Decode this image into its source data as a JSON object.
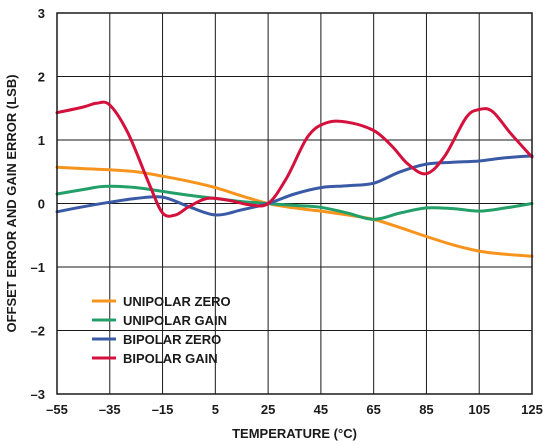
{
  "chart_data": {
    "type": "line",
    "title": "",
    "xlabel": "TEMPERATURE (°C)",
    "ylabel": "OFFSET ERROR AND GAIN ERROR (LSB)",
    "xlim": [
      -55,
      125
    ],
    "ylim": [
      -3,
      3
    ],
    "x_ticks": [
      -55,
      -35,
      -15,
      5,
      25,
      45,
      65,
      85,
      105,
      125
    ],
    "x_tick_labels": [
      "–55",
      "–35",
      "–15",
      "5",
      "25",
      "45",
      "65",
      "85",
      "105",
      "125"
    ],
    "y_ticks": [
      -3,
      -2,
      -1,
      0,
      1,
      2,
      3
    ],
    "y_tick_labels": [
      "–3",
      "–2",
      "–1",
      "0",
      "1",
      "2",
      "3"
    ],
    "grid": true,
    "legend_position": "bottom-left",
    "series": [
      {
        "name": "UNIPOLAR ZERO",
        "color": "#F7941D",
        "points": [
          [
            -55,
            0.57
          ],
          [
            -45,
            0.55
          ],
          [
            -35,
            0.53
          ],
          [
            -25,
            0.5
          ],
          [
            -15,
            0.43
          ],
          [
            -5,
            0.35
          ],
          [
            5,
            0.25
          ],
          [
            15,
            0.12
          ],
          [
            25,
            0.0
          ],
          [
            35,
            -0.07
          ],
          [
            45,
            -0.12
          ],
          [
            55,
            -0.18
          ],
          [
            65,
            -0.25
          ],
          [
            75,
            -0.38
          ],
          [
            85,
            -0.52
          ],
          [
            95,
            -0.65
          ],
          [
            105,
            -0.75
          ],
          [
            115,
            -0.8
          ],
          [
            125,
            -0.83
          ]
        ]
      },
      {
        "name": "UNIPOLAR GAIN",
        "color": "#23A06A",
        "points": [
          [
            -55,
            0.15
          ],
          [
            -45,
            0.22
          ],
          [
            -37,
            0.27
          ],
          [
            -25,
            0.25
          ],
          [
            -15,
            0.19
          ],
          [
            -5,
            0.13
          ],
          [
            5,
            0.08
          ],
          [
            15,
            0.03
          ],
          [
            25,
            0.0
          ],
          [
            35,
            -0.03
          ],
          [
            45,
            -0.06
          ],
          [
            55,
            -0.15
          ],
          [
            65,
            -0.25
          ],
          [
            75,
            -0.15
          ],
          [
            85,
            -0.07
          ],
          [
            95,
            -0.08
          ],
          [
            105,
            -0.12
          ],
          [
            115,
            -0.07
          ],
          [
            125,
            0.0
          ]
        ]
      },
      {
        "name": "BIPOLAR ZERO",
        "color": "#3A5AA6",
        "points": [
          [
            -55,
            -0.13
          ],
          [
            -45,
            -0.05
          ],
          [
            -35,
            0.02
          ],
          [
            -25,
            0.08
          ],
          [
            -15,
            0.1
          ],
          [
            -5,
            -0.05
          ],
          [
            5,
            -0.18
          ],
          [
            15,
            -0.1
          ],
          [
            25,
            0.0
          ],
          [
            35,
            0.15
          ],
          [
            45,
            0.25
          ],
          [
            55,
            0.28
          ],
          [
            65,
            0.32
          ],
          [
            75,
            0.5
          ],
          [
            85,
            0.62
          ],
          [
            95,
            0.65
          ],
          [
            105,
            0.67
          ],
          [
            115,
            0.72
          ],
          [
            125,
            0.75
          ]
        ]
      },
      {
        "name": "BIPOLAR GAIN",
        "color": "#D4103C",
        "points": [
          [
            -55,
            1.43
          ],
          [
            -45,
            1.52
          ],
          [
            -40,
            1.58
          ],
          [
            -35,
            1.55
          ],
          [
            -28,
            1.1
          ],
          [
            -20,
            0.3
          ],
          [
            -15,
            -0.15
          ],
          [
            -10,
            -0.18
          ],
          [
            -5,
            -0.05
          ],
          [
            2,
            0.08
          ],
          [
            10,
            0.05
          ],
          [
            18,
            -0.02
          ],
          [
            25,
            0.0
          ],
          [
            32,
            0.4
          ],
          [
            40,
            1.05
          ],
          [
            47,
            1.27
          ],
          [
            55,
            1.28
          ],
          [
            65,
            1.15
          ],
          [
            72,
            0.9
          ],
          [
            78,
            0.62
          ],
          [
            85,
            0.47
          ],
          [
            92,
            0.75
          ],
          [
            100,
            1.35
          ],
          [
            105,
            1.48
          ],
          [
            110,
            1.45
          ],
          [
            117,
            1.1
          ],
          [
            125,
            0.73
          ]
        ]
      }
    ]
  }
}
